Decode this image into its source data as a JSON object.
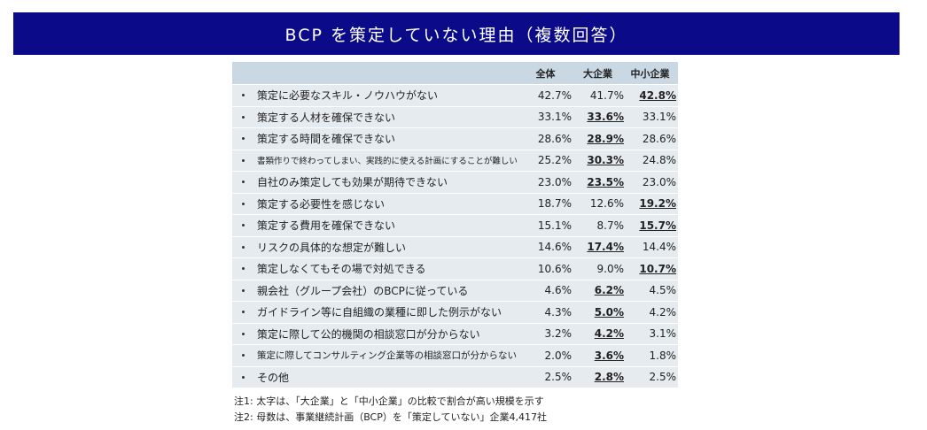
{
  "header": {
    "title": "BCP を策定していない理由（複数回答）"
  },
  "table": {
    "columns": [
      "全体",
      "大企業",
      "中小企業"
    ],
    "rows": [
      {
        "label": "策定に必要なスキル・ノウハウがない",
        "values": [
          "42.7%",
          "41.7%",
          "42.8%"
        ],
        "emphasis": 2
      },
      {
        "label": "策定する人材を確保できない",
        "values": [
          "33.1%",
          "33.6%",
          "33.1%"
        ],
        "emphasis": 1
      },
      {
        "label": "策定する時間を確保できない",
        "values": [
          "28.6%",
          "28.9%",
          "28.6%"
        ],
        "emphasis": 1
      },
      {
        "label": "書類作りで終わってしまい、実践的に使える計画にすることが難しい",
        "values": [
          "25.2%",
          "30.3%",
          "24.8%"
        ],
        "emphasis": 1
      },
      {
        "label": "自社のみ策定しても効果が期待できない",
        "values": [
          "23.0%",
          "23.5%",
          "23.0%"
        ],
        "emphasis": 1
      },
      {
        "label": "策定する必要性を感じない",
        "values": [
          "18.7%",
          "12.6%",
          "19.2%"
        ],
        "emphasis": 2
      },
      {
        "label": "策定する費用を確保できない",
        "values": [
          "15.1%",
          "8.7%",
          "15.7%"
        ],
        "emphasis": 2
      },
      {
        "label": "リスクの具体的な想定が難しい",
        "values": [
          "14.6%",
          "17.4%",
          "14.4%"
        ],
        "emphasis": 1
      },
      {
        "label": "策定しなくてもその場で対処できる",
        "values": [
          "10.6%",
          "9.0%",
          "10.7%"
        ],
        "emphasis": 2
      },
      {
        "label": "親会社（グループ会社）のBCPに従っている",
        "values": [
          "4.6%",
          "6.2%",
          "4.5%"
        ],
        "emphasis": 1
      },
      {
        "label": "ガイドライン等に自組織の業種に即した例示がない",
        "values": [
          "4.3%",
          "5.0%",
          "4.2%"
        ],
        "emphasis": 1
      },
      {
        "label": "策定に際して公的機関の相談窓口が分からない",
        "values": [
          "3.2%",
          "4.2%",
          "3.1%"
        ],
        "emphasis": 1
      },
      {
        "label": "策定に際してコンサルティング企業等の相談窓口が分からない",
        "values": [
          "2.0%",
          "3.6%",
          "1.8%"
        ],
        "emphasis": 1
      },
      {
        "label": "その他",
        "values": [
          "2.5%",
          "2.8%",
          "2.5%"
        ],
        "emphasis": 1
      }
    ]
  },
  "notes": [
    "注1: 太字は、「大企業」と「中小企業」の比較で割合が高い規模を示す",
    "注2: 母数は、事業継続計画（BCP）を「策定していない」企業4,417社"
  ]
}
